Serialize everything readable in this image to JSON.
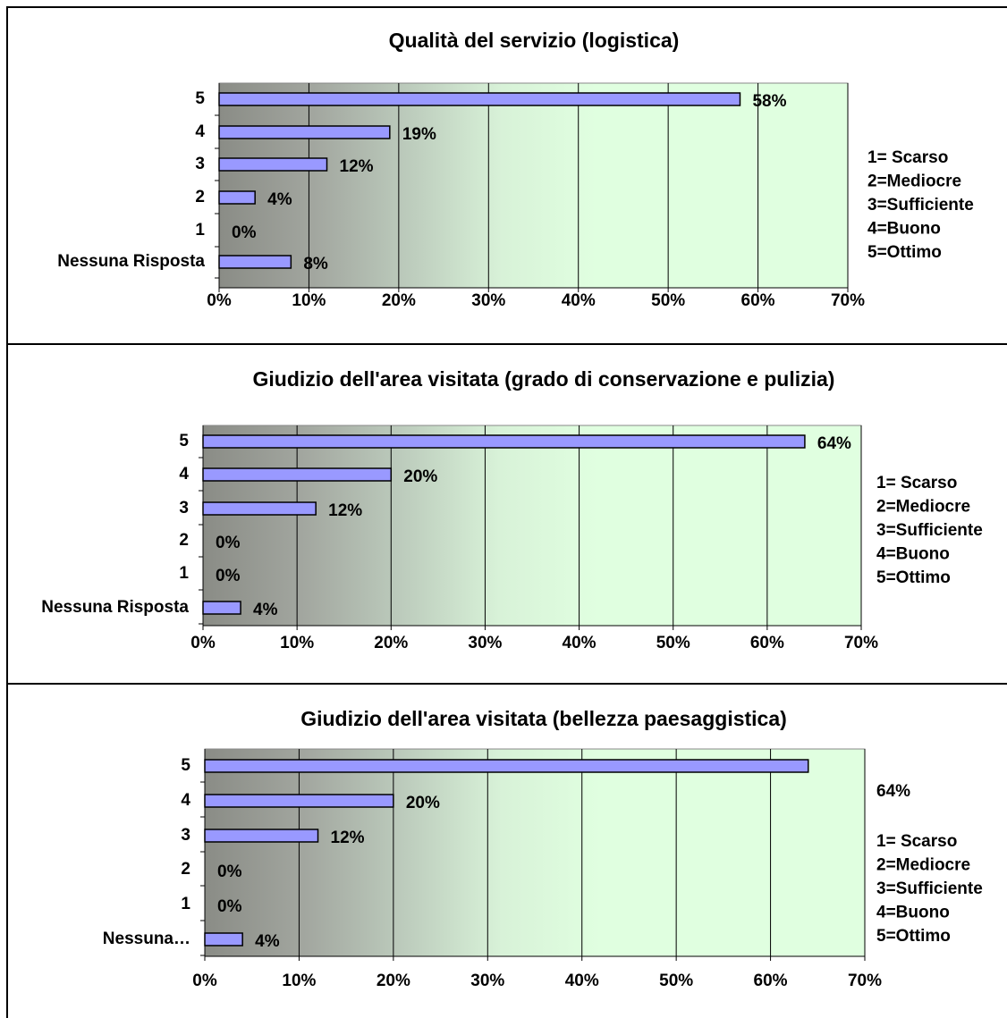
{
  "chart_data": [
    {
      "type": "bar",
      "title": "Qualità del servizio (logistica)",
      "categories": [
        "5",
        "4",
        "3",
        "2",
        "1",
        "Nessuna Risposta"
      ],
      "values": [
        58,
        19,
        12,
        4,
        0,
        8
      ],
      "value_labels": [
        "58%",
        "19%",
        "12%",
        "4%",
        "0%",
        "8%"
      ],
      "color": "#9999ff",
      "xlim": [
        0,
        70
      ],
      "xticks": [
        {
          "value": 0,
          "label": "0%"
        },
        {
          "value": 10,
          "label": "10%"
        },
        {
          "value": 20,
          "label": "20%"
        },
        {
          "value": 30,
          "label": "30%"
        },
        {
          "value": 40,
          "label": "40%"
        },
        {
          "value": 50,
          "label": "50%"
        },
        {
          "value": 60,
          "label": "60%"
        },
        {
          "value": 70,
          "label": "70%"
        }
      ],
      "grid": true,
      "annotations": [
        "1= Scarso",
        "2=Mediocre",
        "3=Sufficiente",
        "4=Buono",
        "5=Ottimo"
      ]
    },
    {
      "type": "bar",
      "title": "Giudizio dell'area visitata (grado di conservazione e pulizia)",
      "categories": [
        "5",
        "4",
        "3",
        "2",
        "1",
        "Nessuna Risposta"
      ],
      "values": [
        64,
        20,
        12,
        0,
        0,
        4
      ],
      "value_labels": [
        "64%",
        "20%",
        "12%",
        "0%",
        "0%",
        "4%"
      ],
      "color": "#9999ff",
      "xlim": [
        0,
        70
      ],
      "xticks": [
        {
          "value": 0,
          "label": "0%"
        },
        {
          "value": 10,
          "label": "10%"
        },
        {
          "value": 20,
          "label": "20%"
        },
        {
          "value": 30,
          "label": "30%"
        },
        {
          "value": 40,
          "label": "40%"
        },
        {
          "value": 50,
          "label": "50%"
        },
        {
          "value": 60,
          "label": "60%"
        },
        {
          "value": 70,
          "label": "70%"
        }
      ],
      "grid": true,
      "annotations": [
        "1= Scarso",
        "2=Mediocre",
        "3=Sufficiente",
        "4=Buono",
        "5=Ottimo"
      ]
    },
    {
      "type": "bar",
      "title": "Giudizio dell'area visitata (bellezza paesaggistica)",
      "categories": [
        "5",
        "4",
        "3",
        "2",
        "1",
        "Nessuna…"
      ],
      "values": [
        64,
        20,
        12,
        0,
        0,
        4
      ],
      "value_labels": [
        "64%",
        "20%",
        "12%",
        "0%",
        "0%",
        "4%"
      ],
      "color": "#9999ff",
      "xlim": [
        0,
        70
      ],
      "xticks": [
        {
          "value": 0,
          "label": "0%"
        },
        {
          "value": 10,
          "label": "10%"
        },
        {
          "value": 20,
          "label": "20%"
        },
        {
          "value": 30,
          "label": "30%"
        },
        {
          "value": 40,
          "label": "40%"
        },
        {
          "value": 50,
          "label": "50%"
        },
        {
          "value": 60,
          "label": "60%"
        },
        {
          "value": 70,
          "label": "70%"
        }
      ],
      "grid": true,
      "annotations": [
        "1= Scarso",
        "2=Mediocre",
        "3=Sufficiente",
        "4=Buono",
        "5=Ottimo"
      ]
    }
  ]
}
